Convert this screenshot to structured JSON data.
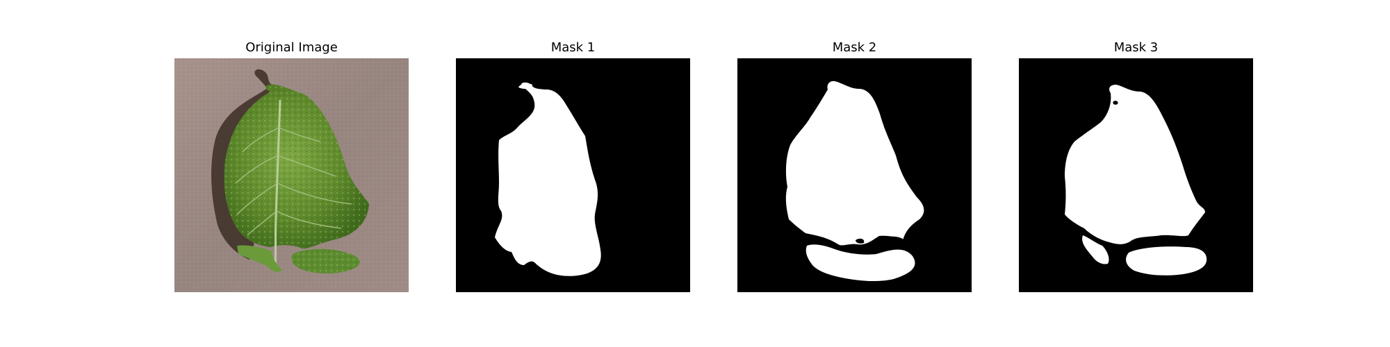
{
  "figure": {
    "panels": [
      {
        "title": "Original Image",
        "kind": "photo",
        "subject": "green leaf on wooden surface"
      },
      {
        "title": "Mask 1",
        "kind": "binary-mask",
        "background": "#000000",
        "foreground": "#ffffff"
      },
      {
        "title": "Mask 2",
        "kind": "binary-mask",
        "background": "#000000",
        "foreground": "#ffffff"
      },
      {
        "title": "Mask 3",
        "kind": "binary-mask",
        "background": "#000000",
        "foreground": "#ffffff"
      }
    ]
  },
  "colors": {
    "wood": "#9c8a84",
    "shadow": "#3b2d25",
    "leaf_dark": "#3f6a1c",
    "leaf_light": "#7ea844",
    "vein": "#b9cf9a"
  }
}
